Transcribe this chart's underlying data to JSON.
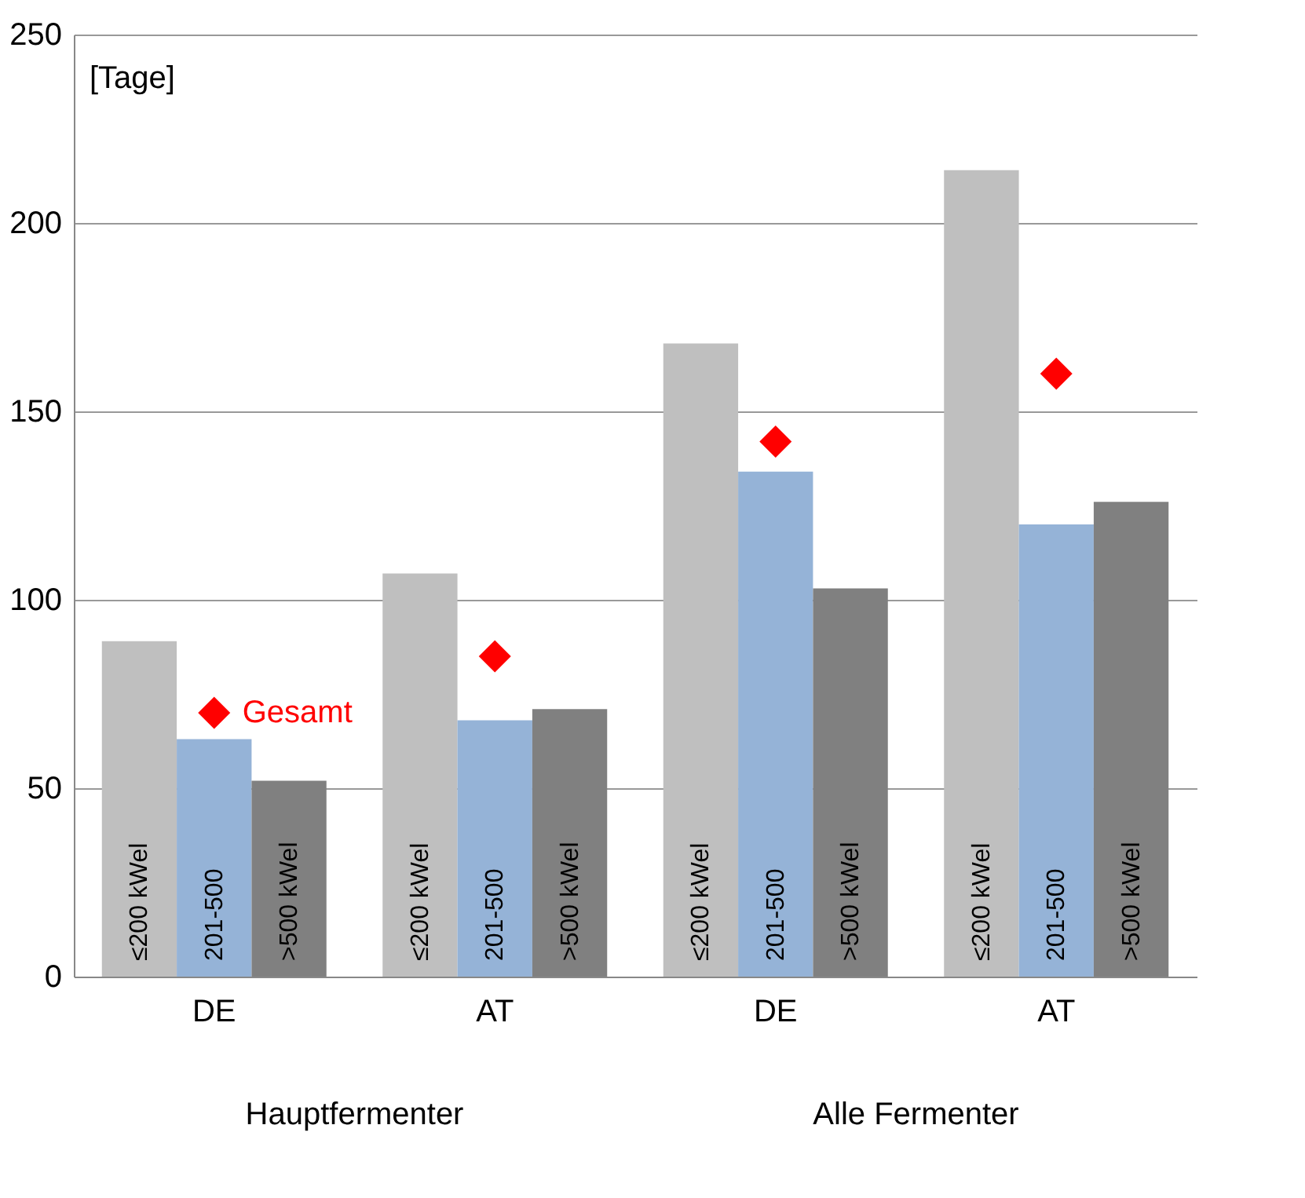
{
  "chart_data": {
    "type": "bar",
    "ylabel": "[Tage]",
    "categories": [
      "DE",
      "AT",
      "DE",
      "AT"
    ],
    "series": [
      {
        "name": "≤200 kWel",
        "color": "#bfbfbf",
        "values": [
          89,
          107,
          168,
          214
        ]
      },
      {
        "name": "201-500",
        "color": "#95b3d7",
        "values": [
          63,
          68,
          134,
          120
        ]
      },
      {
        "name": ">500 kWel",
        "color": "#808080",
        "values": [
          52,
          71,
          103,
          126
        ]
      },
      {
        "name": "Gesamt",
        "type": "scatter",
        "marker": "diamond",
        "color": "#ff0000",
        "values": [
          70,
          85,
          142,
          160
        ]
      }
    ],
    "annotations": [
      "Hauptfermenter",
      "Alle Fermenter"
    ],
    "ylim": [
      0,
      250
    ],
    "yticks": [
      0,
      50,
      100,
      150,
      200,
      250
    ],
    "grid": "y",
    "legend": false
  }
}
